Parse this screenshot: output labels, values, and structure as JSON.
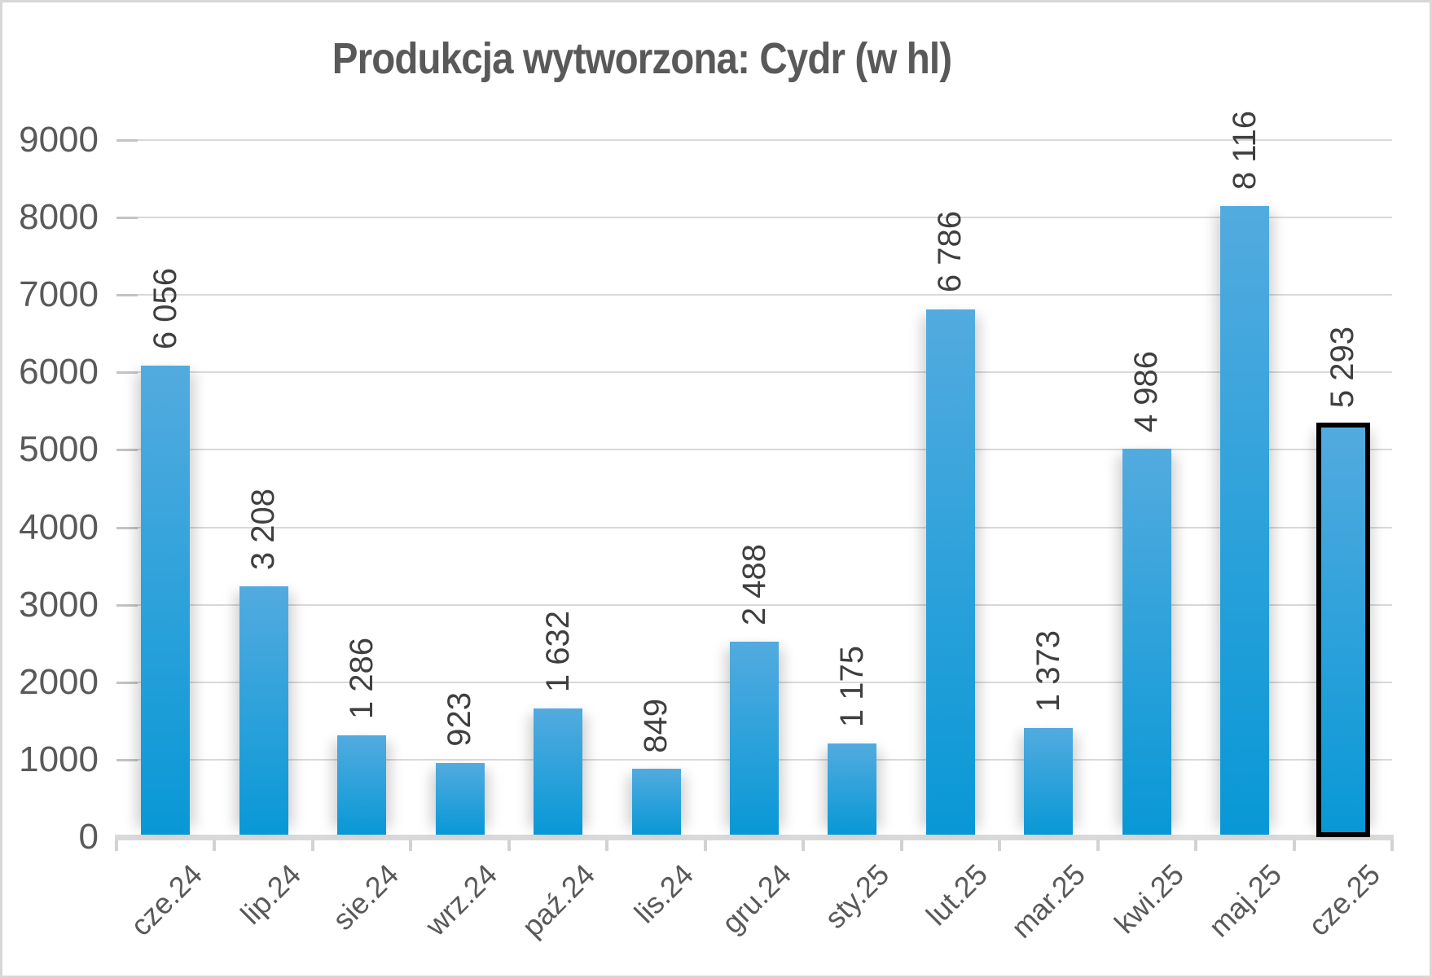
{
  "chart_data": {
    "type": "bar",
    "title": "Produkcja wytworzona: Cydr (w hl)",
    "categories": [
      "cze.24",
      "lip.24",
      "sie.24",
      "wrz.24",
      "paź.24",
      "lis.24",
      "gru.24",
      "sty.25",
      "lut.25",
      "mar.25",
      "kwi.25",
      "maj.25",
      "cze.25"
    ],
    "values": [
      6056,
      3208,
      1286,
      923,
      1632,
      849,
      2488,
      1175,
      6786,
      1373,
      4986,
      8116,
      5293
    ],
    "value_labels": [
      "6 056",
      "3 208",
      "1 286",
      "923",
      "1 632",
      "849",
      "2 488",
      "1 175",
      "6 786",
      "1 373",
      "4 986",
      "8 116",
      "5 293"
    ],
    "y_tick_labels": [
      "0",
      "1000",
      "2000",
      "3000",
      "4000",
      "5000",
      "6000",
      "7000",
      "8000",
      "9000"
    ],
    "ylim": [
      0,
      9000
    ],
    "grid": true,
    "legend": "none",
    "xlabel": "",
    "ylabel": "",
    "highlighted_category": "cze.25",
    "colors": {
      "bar_gradient_top": "#53abdf",
      "bar_gradient_bottom": "#0898d6",
      "highlight_outline": "#000000",
      "title_text": "#595959",
      "axis_text": "#595959",
      "value_label_text": "#3f3f3f",
      "gridline": "#d9d9d9"
    }
  }
}
